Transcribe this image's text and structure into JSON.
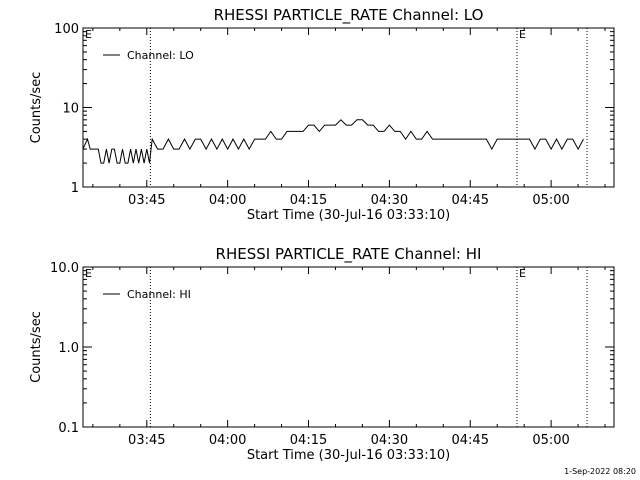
{
  "footer": {
    "timestamp": "1-Sep-2022 08:20"
  },
  "chart_data": [
    {
      "type": "line",
      "title": "RHESSI PARTICLE_RATE Channel: LO",
      "xlabel": "Start Time (30-Jul-16 03:33:10)",
      "ylabel": "Counts/sec",
      "yscale": "log",
      "xlim": [
        "03:33:10",
        "05:11:40"
      ],
      "ylim": [
        1,
        100
      ],
      "x_ticks": [
        "03:45",
        "04:00",
        "04:15",
        "04:30",
        "04:45",
        "05:00"
      ],
      "y_ticks": [
        "1",
        "10",
        "100"
      ],
      "legend": {
        "entries": [
          "Channel: LO"
        ],
        "position": "top-left"
      },
      "grid": false,
      "markers": [
        {
          "time": "03:33:10",
          "label": "E"
        },
        {
          "time": "03:45:40",
          "label": ""
        },
        {
          "time": "04:53:40",
          "label": "E"
        },
        {
          "time": "05:06:40",
          "label": ""
        }
      ],
      "series": [
        {
          "name": "Channel: LO",
          "x": [
            "03:33:10",
            "03:34:00",
            "03:34:30",
            "03:35:00",
            "03:35:30",
            "03:36:00",
            "03:36:30",
            "03:37:00",
            "03:37:30",
            "03:38:00",
            "03:38:30",
            "03:39:00",
            "03:39:30",
            "03:40:00",
            "03:40:30",
            "03:41:00",
            "03:41:30",
            "03:42:00",
            "03:42:30",
            "03:43:00",
            "03:43:30",
            "03:44:00",
            "03:44:30",
            "03:45:00",
            "03:45:30",
            "03:46:00",
            "03:47:00",
            "03:48:00",
            "03:49:00",
            "03:50:00",
            "03:51:00",
            "03:52:00",
            "03:53:00",
            "03:54:00",
            "03:55:00",
            "03:56:00",
            "03:57:00",
            "03:58:00",
            "03:59:00",
            "04:00:00",
            "04:01:00",
            "04:02:00",
            "04:03:00",
            "04:04:00",
            "04:05:00",
            "04:06:00",
            "04:07:00",
            "04:08:00",
            "04:09:00",
            "04:10:00",
            "04:11:00",
            "04:12:00",
            "04:13:00",
            "04:14:00",
            "04:15:00",
            "04:16:00",
            "04:17:00",
            "04:18:00",
            "04:19:00",
            "04:20:00",
            "04:21:00",
            "04:22:00",
            "04:23:00",
            "04:24:00",
            "04:25:00",
            "04:26:00",
            "04:27:00",
            "04:28:00",
            "04:29:00",
            "04:30:00",
            "04:31:00",
            "04:32:00",
            "04:33:00",
            "04:34:00",
            "04:35:00",
            "04:36:00",
            "04:37:00",
            "04:38:00",
            "04:39:00",
            "04:40:00",
            "04:41:00",
            "04:42:00",
            "04:43:00",
            "04:44:00",
            "04:45:00",
            "04:46:00",
            "04:47:00",
            "04:48:00",
            "04:49:00",
            "04:50:00",
            "04:51:00",
            "04:52:00",
            "04:53:00",
            "04:54:00",
            "04:55:00",
            "04:56:00",
            "04:57:00",
            "04:58:00",
            "04:59:00",
            "05:00:00",
            "05:01:00",
            "05:02:00",
            "05:03:00",
            "05:04:00",
            "05:05:00",
            "05:06:00"
          ],
          "values": [
            3,
            4,
            3,
            3,
            3,
            3,
            2,
            2,
            3,
            2,
            3,
            3,
            2,
            2,
            3,
            2,
            2,
            3,
            2,
            3,
            2,
            3,
            2,
            3,
            2,
            4,
            3,
            3,
            4,
            3,
            3,
            4,
            3,
            4,
            4,
            3,
            4,
            3,
            4,
            3,
            4,
            3,
            4,
            3,
            4,
            4,
            4,
            5,
            4,
            4,
            5,
            5,
            5,
            5,
            6,
            6,
            5,
            6,
            6,
            6,
            7,
            6,
            6,
            7,
            7,
            6,
            6,
            5,
            5,
            6,
            5,
            5,
            4,
            5,
            4,
            4,
            5,
            4,
            4,
            4,
            4,
            4,
            4,
            4,
            4,
            4,
            4,
            4,
            3,
            4,
            4,
            4,
            4,
            4,
            4,
            4,
            3,
            4,
            4,
            3,
            4,
            3,
            4,
            4,
            3,
            4
          ]
        }
      ]
    },
    {
      "type": "line",
      "title": "RHESSI PARTICLE_RATE Channel: HI",
      "xlabel": "Start Time (30-Jul-16 03:33:10)",
      "ylabel": "Counts/sec",
      "yscale": "log",
      "xlim": [
        "03:33:10",
        "05:11:40"
      ],
      "ylim": [
        0.1,
        10
      ],
      "x_ticks": [
        "03:45",
        "04:00",
        "04:15",
        "04:30",
        "04:45",
        "05:00"
      ],
      "y_ticks": [
        "0.1",
        "1.0",
        "10.0"
      ],
      "legend": {
        "entries": [
          "Channel: HI"
        ],
        "position": "top-left"
      },
      "grid": false,
      "markers": [
        {
          "time": "03:33:10",
          "label": "E"
        },
        {
          "time": "03:45:40",
          "label": ""
        },
        {
          "time": "04:53:40",
          "label": "E"
        },
        {
          "time": "05:06:40",
          "label": ""
        }
      ],
      "series": [
        {
          "name": "Channel: HI",
          "x": [],
          "values": []
        }
      ]
    }
  ]
}
